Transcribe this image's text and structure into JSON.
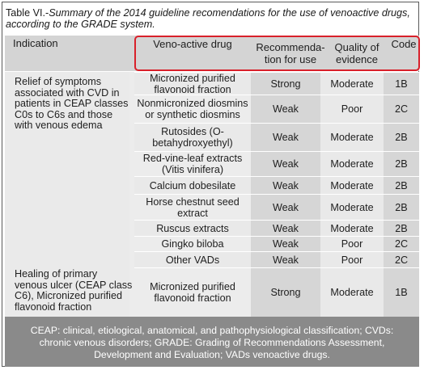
{
  "caption": {
    "prefix": "Table VI.-",
    "text": "Summary of the 2014 guideline recomendations for the use of venoactive drugs, according to the GRADE system."
  },
  "headers": {
    "indication": "Indication",
    "drug": "Veno-active drug",
    "recommendation": "Recommenda-\ntion for use",
    "quality": "Quality of\nevidence",
    "code": "Code"
  },
  "indications": [
    "Relief of symptoms associated with CVD in patients in CEAP classes C0s to C6s and those with venous edema",
    "Healing of primary venous ulcer (CEAP class C6), Micronized purified flavonoid fraction"
  ],
  "rows": [
    {
      "drug": "Micronized purified flavonoid fraction",
      "rec": "Strong",
      "quality": "Moderate",
      "code": "1B"
    },
    {
      "drug": "Nonmicronized diosmins or synthetic diosmins",
      "rec": "Weak",
      "quality": "Poor",
      "code": "2C"
    },
    {
      "drug": "Rutosides (O-betahydroxyethyl)",
      "rec": "Weak",
      "quality": "Moderate",
      "code": "2B"
    },
    {
      "drug": "Red-vine-leaf extracts (Vitis vinifera)",
      "rec": "Weak",
      "quality": "Moderate",
      "code": "2B"
    },
    {
      "drug": "Calcium dobesilate",
      "rec": "Weak",
      "quality": "Moderate",
      "code": "2B"
    },
    {
      "drug": "Horse chestnut seed extract",
      "rec": "Weak",
      "quality": "Moderate",
      "code": "2B"
    },
    {
      "drug": "Ruscus extracts",
      "rec": "Weak",
      "quality": "Moderate",
      "code": "2B"
    },
    {
      "drug": "Gingko biloba",
      "rec": "Weak",
      "quality": "Poor",
      "code": "2C"
    },
    {
      "drug": "Other VADs",
      "rec": "Weak",
      "quality": "Poor",
      "code": "2C"
    },
    {
      "drug": "Micronized purified flavonoid fraction",
      "rec": "Strong",
      "quality": "Moderate",
      "code": "1B"
    }
  ],
  "footer": "CEAP: clinical, etiological, anatomical, and pathophysiological classification; CVDs: chronic venous disorders; GRADE: Grading of Recommendations Assessment, Development and Evaluation; VADs venoactive drugs.",
  "colors": {
    "highlight_border": "#d8202a",
    "header_bg": "#d4d4d4",
    "footer_bg": "#8a8a8a"
  }
}
